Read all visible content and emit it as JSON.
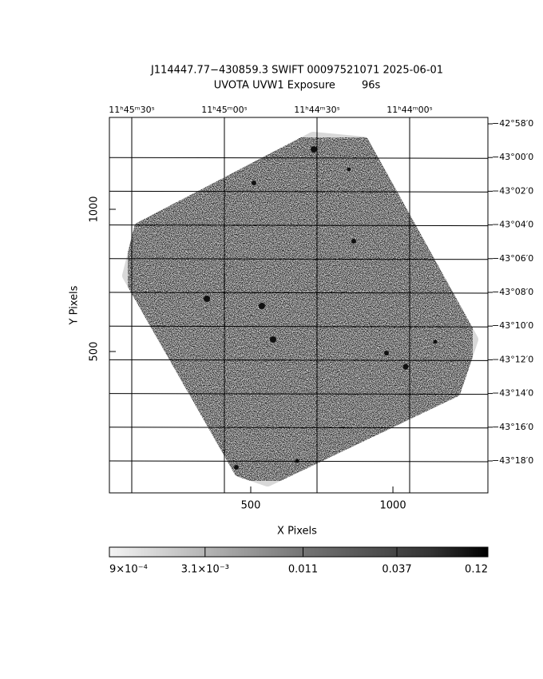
{
  "chart_data": {
    "type": "image",
    "title": "J114447.77−430859.3 SWIFT 00097521071 2025-06-01",
    "subtitle": "UVOTA UVW1 Exposure        96s",
    "x_label": "X Pixels",
    "y_label": "Y Pixels",
    "xlim": [
      3,
      1334
    ],
    "ylim": [
      3,
      1323
    ],
    "xticks": [
      500,
      1000
    ],
    "yticks": [
      500,
      1000
    ],
    "ra_ticks": [
      "11ʰ45ᵐ30ˢ",
      "11ʰ45ᵐ00ˢ",
      "11ʰ44ᵐ30ˢ",
      "11ʰ44ᵐ00ˢ"
    ],
    "dec_ticks": [
      "−42°58′0",
      "−43°00′0",
      "−43°02′0",
      "−43°04′0",
      "−43°06′0",
      "−43°08′0",
      "−43°10′0",
      "−43°12′0",
      "−43°14′0",
      "−43°16′0",
      "−43°18′0"
    ],
    "colorbar": {
      "log_scale": true,
      "clim": [
        0.0009,
        0.12
      ],
      "ticks": [
        {
          "value": 0.0009,
          "label": "9×10⁻⁴"
        },
        {
          "value": 0.0031,
          "label": "3.1×10⁻³"
        },
        {
          "value": 0.011,
          "label": "0.011"
        },
        {
          "value": 0.037,
          "label": "0.037"
        },
        {
          "value": 0.12,
          "label": "0.12"
        }
      ]
    }
  }
}
